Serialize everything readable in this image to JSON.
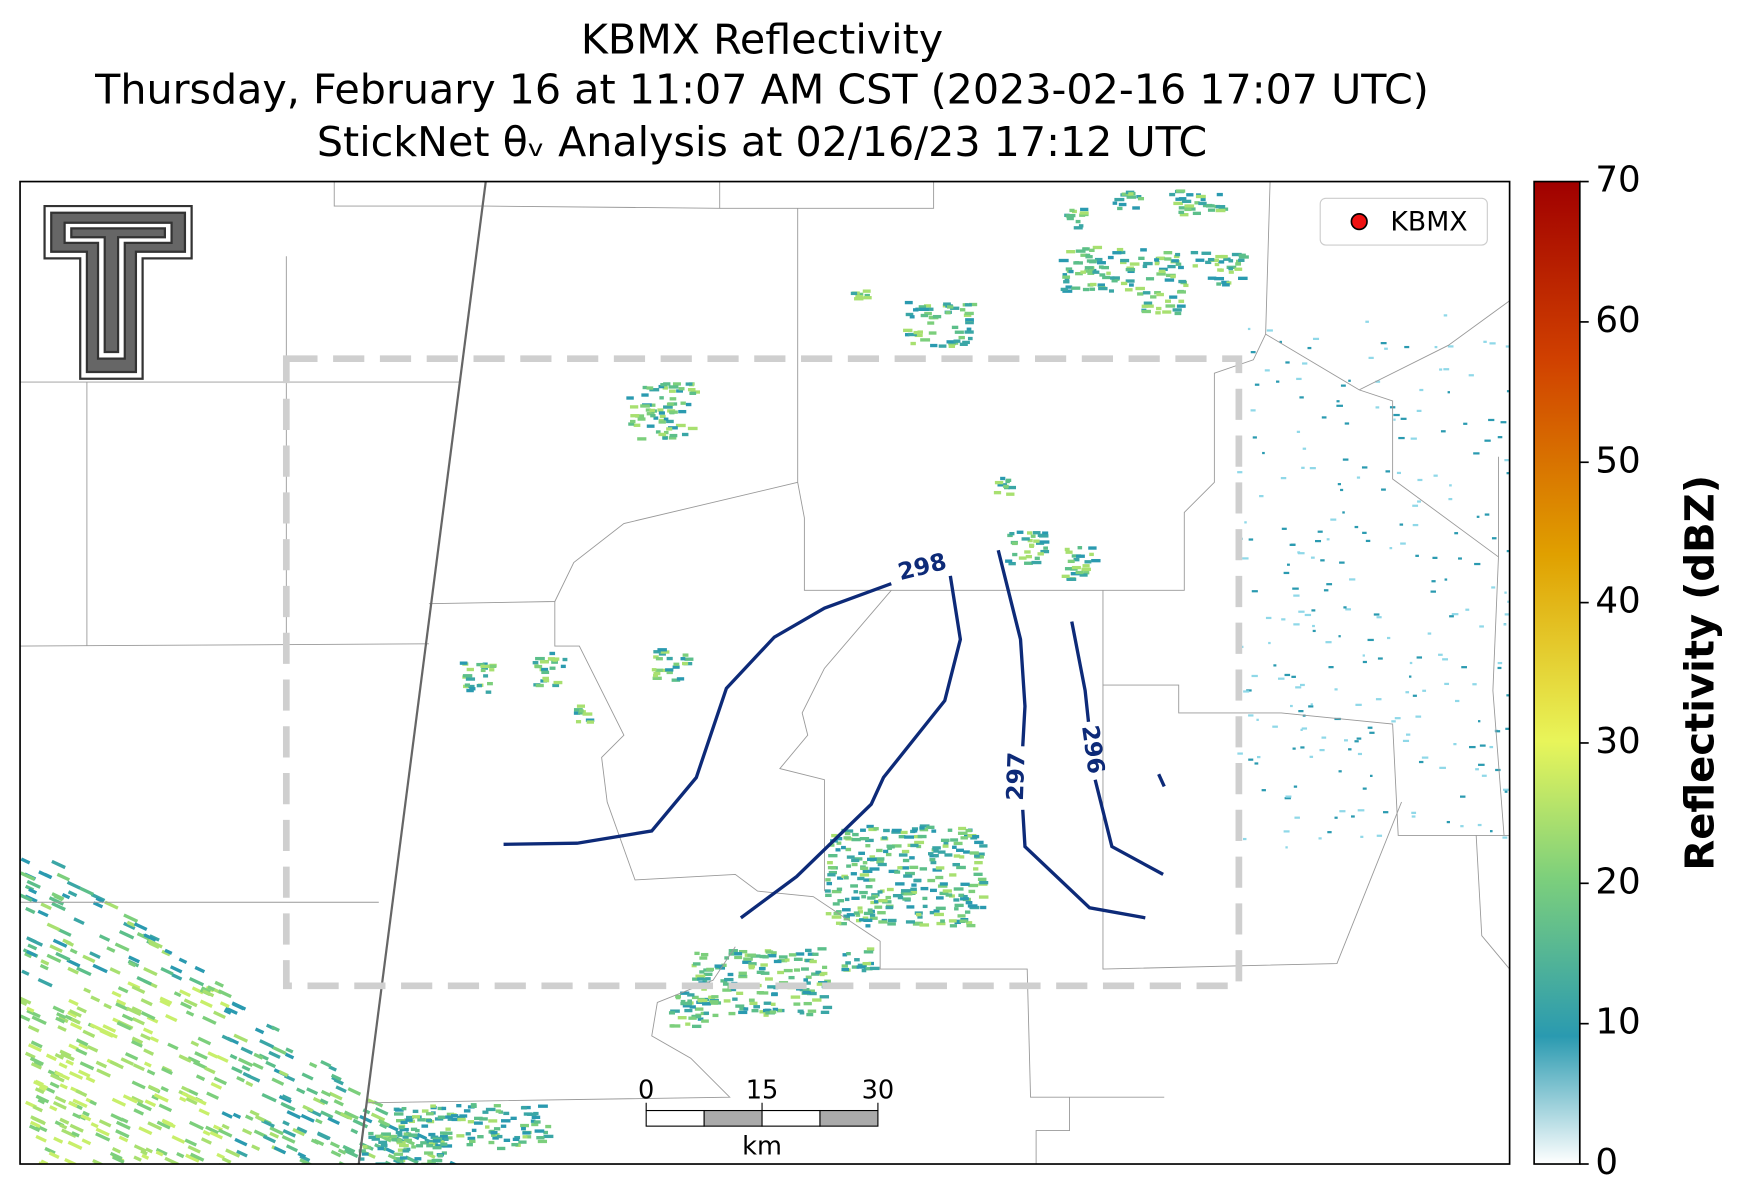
{
  "title": [
    "KBMX Reflectivity",
    "Thursday, February 16 at 11:07 AM CST (2023-02-16 17:07 UTC)",
    "StickNet θᵥ Analysis at 02/16/23 17:12 UTC"
  ],
  "legend": {
    "label": "KBMX",
    "color": "#ee1111"
  },
  "colorbar": {
    "label": "Reflectivity (dBZ)",
    "lim": [
      0,
      70
    ],
    "ticks": [
      0,
      10,
      20,
      30,
      40,
      50,
      60,
      70
    ]
  },
  "contours": [
    {
      "value": 298
    },
    {
      "value": 297
    },
    {
      "value": 296
    }
  ],
  "scale_bar": {
    "lim": [
      0,
      30
    ],
    "ticks": [
      0,
      15,
      30
    ],
    "unit": "km"
  }
}
